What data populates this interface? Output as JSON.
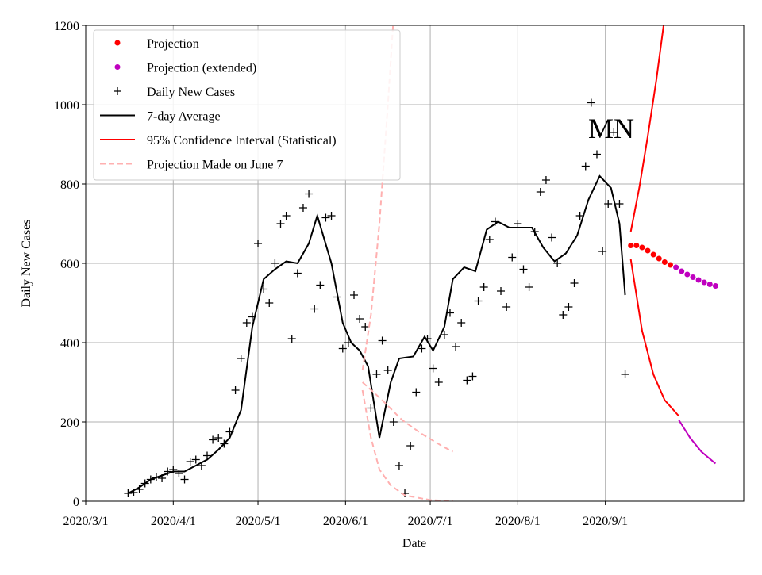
{
  "chart_data": {
    "type": "line",
    "xlabel": "Date",
    "ylabel": "Daily New Cases",
    "annotations": [
      {
        "text": "MN"
      }
    ],
    "xlim": [
      "2020-03-01",
      "2020-10-20"
    ],
    "xticks": [
      {
        "value": "2020-03-01",
        "label": "2020/3/1"
      },
      {
        "value": "2020-04-01",
        "label": "2020/4/1"
      },
      {
        "value": "2020-05-01",
        "label": "2020/5/1"
      },
      {
        "value": "2020-06-01",
        "label": "2020/6/1"
      },
      {
        "value": "2020-07-01",
        "label": "2020/7/1"
      },
      {
        "value": "2020-08-01",
        "label": "2020/8/1"
      },
      {
        "value": "2020-09-01",
        "label": "2020/9/1"
      }
    ],
    "ylim": [
      0,
      1200
    ],
    "yticks": [
      0,
      200,
      400,
      600,
      800,
      1000,
      1200
    ],
    "grid": true,
    "legend": "upper left",
    "series": [
      {
        "name": "Projection",
        "color": "#ff0000",
        "marker": "dot",
        "x": [
          "2020-09-10",
          "2020-09-12",
          "2020-09-14",
          "2020-09-16",
          "2020-09-18",
          "2020-09-20",
          "2020-09-22",
          "2020-09-24"
        ],
        "values": [
          645,
          645,
          640,
          632,
          622,
          612,
          603,
          596
        ]
      },
      {
        "name": "Projection (extended)",
        "color": "#bf00bf",
        "marker": "dot",
        "x": [
          "2020-09-26",
          "2020-09-28",
          "2020-09-30",
          "2020-10-02",
          "2020-10-04",
          "2020-10-06",
          "2020-10-08",
          "2020-10-10"
        ],
        "values": [
          590,
          580,
          572,
          565,
          558,
          552,
          547,
          543
        ]
      },
      {
        "name": "Daily New Cases",
        "color": "#000000",
        "marker": "plus",
        "x": [
          "2020-03-16",
          "2020-03-18",
          "2020-03-20",
          "2020-03-22",
          "2020-03-24",
          "2020-03-26",
          "2020-03-28",
          "2020-03-30",
          "2020-04-01",
          "2020-04-03",
          "2020-04-05",
          "2020-04-07",
          "2020-04-09",
          "2020-04-11",
          "2020-04-13",
          "2020-04-15",
          "2020-04-17",
          "2020-04-19",
          "2020-04-21",
          "2020-04-23",
          "2020-04-25",
          "2020-04-27",
          "2020-04-29",
          "2020-05-01",
          "2020-05-03",
          "2020-05-05",
          "2020-05-07",
          "2020-05-09",
          "2020-05-11",
          "2020-05-13",
          "2020-05-15",
          "2020-05-17",
          "2020-05-19",
          "2020-05-21",
          "2020-05-23",
          "2020-05-25",
          "2020-05-27",
          "2020-05-29",
          "2020-05-31",
          "2020-06-02",
          "2020-06-04",
          "2020-06-06",
          "2020-06-08",
          "2020-06-10",
          "2020-06-12",
          "2020-06-14",
          "2020-06-16",
          "2020-06-18",
          "2020-06-20",
          "2020-06-22",
          "2020-06-24",
          "2020-06-26",
          "2020-06-28",
          "2020-06-30",
          "2020-07-02",
          "2020-07-04",
          "2020-07-06",
          "2020-07-08",
          "2020-07-10",
          "2020-07-12",
          "2020-07-14",
          "2020-07-16",
          "2020-07-18",
          "2020-07-20",
          "2020-07-22",
          "2020-07-24",
          "2020-07-26",
          "2020-07-28",
          "2020-07-30",
          "2020-08-01",
          "2020-08-03",
          "2020-08-05",
          "2020-08-07",
          "2020-08-09",
          "2020-08-11",
          "2020-08-13",
          "2020-08-15",
          "2020-08-17",
          "2020-08-19",
          "2020-08-21",
          "2020-08-23",
          "2020-08-25",
          "2020-08-27",
          "2020-08-29",
          "2020-08-31",
          "2020-09-02",
          "2020-09-04",
          "2020-09-06",
          "2020-09-08"
        ],
        "values": [
          20,
          22,
          30,
          45,
          55,
          60,
          58,
          75,
          80,
          70,
          55,
          100,
          105,
          90,
          115,
          155,
          160,
          145,
          175,
          280,
          360,
          450,
          465,
          650,
          535,
          500,
          600,
          700,
          720,
          410,
          575,
          740,
          775,
          485,
          545,
          715,
          720,
          515,
          385,
          400,
          520,
          460,
          440,
          235,
          320,
          405,
          330,
          200,
          90,
          20,
          140,
          275,
          385,
          410,
          335,
          300,
          420,
          475,
          390,
          450,
          305,
          315,
          505,
          540,
          660,
          705,
          530,
          490,
          615,
          700,
          585,
          540,
          680,
          780,
          810,
          665,
          600,
          470,
          490,
          550,
          720,
          845,
          1005,
          875,
          630,
          750,
          930,
          750,
          320
        ]
      },
      {
        "name": "7-day Average",
        "color": "#000000",
        "line": "solid",
        "x": [
          "2020-03-16",
          "2020-03-20",
          "2020-03-24",
          "2020-03-28",
          "2020-04-01",
          "2020-04-05",
          "2020-04-09",
          "2020-04-13",
          "2020-04-17",
          "2020-04-21",
          "2020-04-25",
          "2020-04-29",
          "2020-05-03",
          "2020-05-07",
          "2020-05-11",
          "2020-05-15",
          "2020-05-19",
          "2020-05-22",
          "2020-05-27",
          "2020-05-31",
          "2020-06-03",
          "2020-06-06",
          "2020-06-09",
          "2020-06-11",
          "2020-06-13",
          "2020-06-17",
          "2020-06-20",
          "2020-06-25",
          "2020-06-29",
          "2020-07-02",
          "2020-07-06",
          "2020-07-09",
          "2020-07-13",
          "2020-07-17",
          "2020-07-21",
          "2020-07-25",
          "2020-07-29",
          "2020-08-02",
          "2020-08-06",
          "2020-08-10",
          "2020-08-14",
          "2020-08-18",
          "2020-08-22",
          "2020-08-26",
          "2020-08-30",
          "2020-09-03",
          "2020-09-06",
          "2020-09-08"
        ],
        "values": [
          20,
          35,
          55,
          65,
          75,
          75,
          90,
          105,
          130,
          160,
          230,
          440,
          560,
          585,
          605,
          600,
          650,
          720,
          600,
          450,
          400,
          380,
          340,
          250,
          160,
          300,
          360,
          365,
          415,
          380,
          440,
          560,
          590,
          580,
          685,
          705,
          690,
          690,
          690,
          640,
          605,
          625,
          670,
          760,
          820,
          790,
          700,
          520
        ]
      },
      {
        "name": "95% Confidence Interval (Statistical)",
        "color": "#ff0000",
        "line": "solid",
        "x": [
          "2020-09-10",
          "2020-09-13",
          "2020-09-16",
          "2020-09-19",
          "2020-09-22"
        ],
        "values": [
          680,
          790,
          920,
          1060,
          1220
        ]
      },
      {
        "color": "#ff0000",
        "line": "solid",
        "x": [
          "2020-09-10",
          "2020-09-14",
          "2020-09-18",
          "2020-09-22",
          "2020-09-27"
        ],
        "values": [
          610,
          430,
          320,
          255,
          215
        ]
      },
      {
        "color": "#bf00bf",
        "line": "solid",
        "x": [
          "2020-09-27",
          "2020-10-01",
          "2020-10-05",
          "2020-10-10"
        ],
        "values": [
          205,
          160,
          125,
          95
        ]
      },
      {
        "name": "Projection Made on June 7",
        "color": "#ffb0b0",
        "line": "dashed",
        "x": [
          "2020-06-07",
          "2020-06-14",
          "2020-06-21",
          "2020-06-28",
          "2020-07-05",
          "2020-07-09"
        ],
        "values": [
          300,
          255,
          205,
          170,
          140,
          125
        ]
      },
      {
        "color": "#ffb0b0",
        "line": "dashed",
        "x": [
          "2020-06-07",
          "2020-06-10",
          "2020-06-13",
          "2020-06-16",
          "2020-06-18"
        ],
        "values": [
          330,
          470,
          700,
          1000,
          1220
        ]
      },
      {
        "color": "#ffb0b0",
        "line": "dashed",
        "x": [
          "2020-06-07",
          "2020-06-10",
          "2020-06-13",
          "2020-06-17",
          "2020-06-22",
          "2020-07-01",
          "2020-07-09"
        ],
        "values": [
          280,
          160,
          80,
          40,
          15,
          3,
          0
        ]
      }
    ]
  }
}
